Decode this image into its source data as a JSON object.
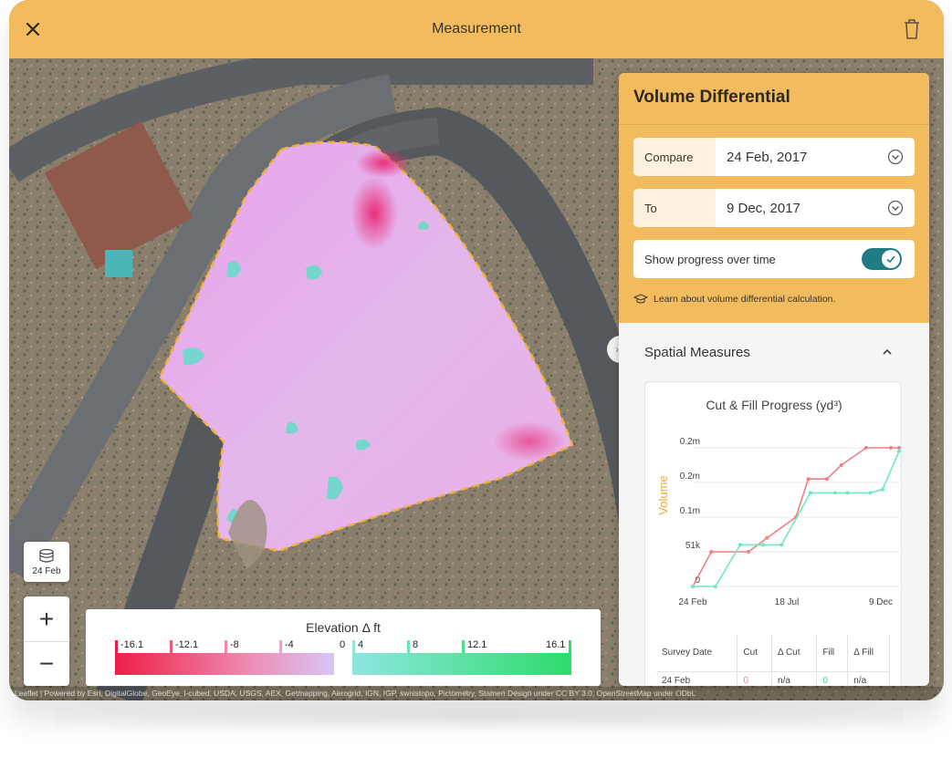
{
  "header": {
    "title": "Measurement",
    "close_icon": "close-icon",
    "trash_icon": "trash-icon"
  },
  "map": {
    "layer_button_label": "24 Feb",
    "zoom_in": "+",
    "zoom_out": "−",
    "attribution": "Leaflet | Powered by Esri, DigitalGlobe, GeoEye, i-cubed, USDA, USGS, AEX, Getmapping, Aerogrid, IGN, IGP, swisstopo, Pictometry, Stamen Design under CC BY 3.0, OpenStreetMap under ODbL"
  },
  "legend": {
    "title": "Elevation Δ ft",
    "ticks": [
      "-16.1",
      "-12.1",
      "-8",
      "-4",
      "0",
      "4",
      "8",
      "12.1",
      "16.1"
    ],
    "neg_color": "#ee1e45",
    "pos_color": "#2ddc6a"
  },
  "panel": {
    "title": "Volume Differential",
    "compare_label": "Compare",
    "compare_value": "24 Feb, 2017",
    "to_label": "To",
    "to_value": "9 Dec, 2017",
    "toggle_label": "Show progress over time",
    "toggle_on": true,
    "learn_link": "Learn about volume differential calculation.",
    "section_title": "Spatial Measures",
    "accent": "#f2bb5e",
    "toggle_color": "#1f7c84"
  },
  "chart_data": {
    "type": "line",
    "title": "Cut & Fill Progress (yd³)",
    "ylabel": "Volume",
    "xlabel": "",
    "x_tick_labels": [
      "24 Feb",
      "18 Jul",
      "9 Dec"
    ],
    "y_tick_labels": [
      "0",
      "51k",
      "0.1m",
      "0.2m",
      "0.2m"
    ],
    "ylim": [
      0,
      0.2
    ],
    "series": [
      {
        "color": "#f07f84",
        "x": [
          0,
          0.09,
          0.27,
          0.36,
          0.5,
          0.56,
          0.65,
          0.72,
          0.84,
          0.96,
          1.0
        ],
        "y": [
          0,
          0.05,
          0.05,
          0.07,
          0.1,
          0.155,
          0.155,
          0.175,
          0.2,
          0.2,
          0.2
        ]
      },
      {
        "color": "#6ee7c6",
        "x": [
          0,
          0.11,
          0.23,
          0.34,
          0.43,
          0.57,
          0.69,
          0.75,
          0.86,
          0.92,
          1.0
        ],
        "y": [
          0,
          0,
          0.06,
          0.06,
          0.06,
          0.135,
          0.135,
          0.135,
          0.135,
          0.14,
          0.195
        ]
      }
    ],
    "grid": true
  },
  "table": {
    "headers": [
      "Survey Date",
      "Cut",
      "Δ Cut",
      "Fill",
      "Δ Fill"
    ],
    "rows": [
      [
        "24 Feb",
        "0",
        "n/a",
        "0",
        "n/a"
      ]
    ]
  }
}
